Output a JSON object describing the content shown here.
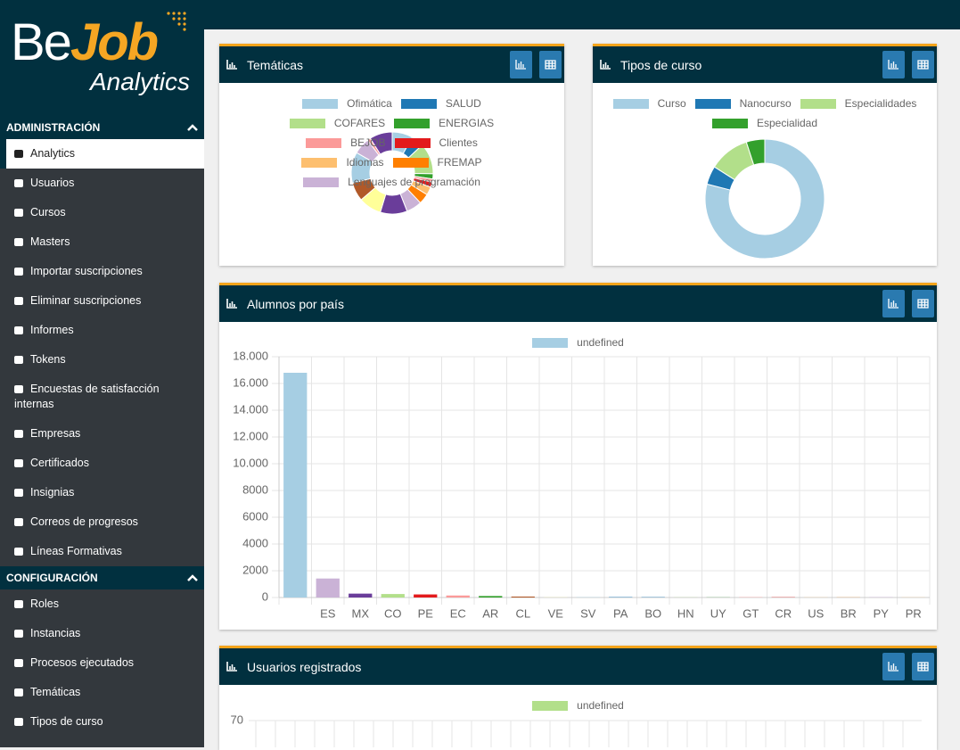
{
  "logo": {
    "brand_be": "Be",
    "brand_job": "Job",
    "subtitle": "Analytics"
  },
  "sidebar": {
    "sections": [
      {
        "title": "ADMINISTRACIÓN",
        "items": [
          {
            "label": "Analytics",
            "active": true
          },
          {
            "label": "Usuarios"
          },
          {
            "label": "Cursos"
          },
          {
            "label": "Masters"
          },
          {
            "label": "Importar suscripciones"
          },
          {
            "label": "Eliminar suscripciones"
          },
          {
            "label": "Informes"
          },
          {
            "label": "Tokens"
          },
          {
            "label": "Encuestas de satisfacción internas"
          },
          {
            "label": "Empresas"
          },
          {
            "label": "Certificados"
          },
          {
            "label": "Insignias"
          },
          {
            "label": "Correos de progresos"
          },
          {
            "label": "Líneas Formativas"
          }
        ]
      },
      {
        "title": "CONFIGURACIÓN",
        "items": [
          {
            "label": "Roles"
          },
          {
            "label": "Instancias"
          },
          {
            "label": "Procesos ejecutados"
          },
          {
            "label": "Temáticas"
          },
          {
            "label": "Tipos de curso"
          }
        ]
      }
    ]
  },
  "chart_data": [
    {
      "type": "pie",
      "title": "Temáticas",
      "categories": [
        "Ofimática",
        "SALUD",
        "COFARES",
        "ENERGIAS",
        "BEJOB",
        "Clientes",
        "Idiomas",
        "FREMAP",
        "Lenguajes de programación",
        null,
        null,
        null,
        null,
        null,
        null,
        null
      ],
      "values": [
        20,
        12,
        30,
        5,
        3,
        5,
        8,
        10,
        15,
        26,
        22,
        18,
        30,
        16,
        3,
        22
      ],
      "colors": [
        "#a6cee3",
        "#1f78b4",
        "#b2df8a",
        "#33a02c",
        "#fb9a99",
        "#e31a1c",
        "#fdbf6f",
        "#ff7f00",
        "#cab2d6",
        "#6a3d9a",
        "#ffff99",
        "#b15928",
        "#a6cee3",
        "#cab2d6",
        "#fb9a99",
        "#6a3d9a"
      ]
    },
    {
      "type": "pie",
      "title": "Tipos de curso",
      "categories": [
        "Curso",
        "Nanocurso",
        "Especialidades",
        "Especialidad"
      ],
      "values": [
        79,
        5,
        11,
        5
      ],
      "colors": [
        "#a6cee3",
        "#1f78b4",
        "#b2df8a",
        "#33a02c"
      ]
    },
    {
      "type": "bar",
      "title": "Alumnos por país",
      "categories": [
        null,
        "ES",
        "MX",
        "CO",
        "PE",
        "EC",
        "AR",
        "CL",
        "VE",
        "SV",
        "PA",
        "BO",
        "HN",
        "UY",
        "GT",
        "CR",
        "US",
        "BR",
        "PY",
        "PR"
      ],
      "series": [
        {
          "name": "undefined",
          "color": "#a6cee3",
          "values": [
            16800,
            1420,
            290,
            260,
            230,
            150,
            110,
            70,
            10,
            20,
            30,
            25,
            10,
            10,
            20,
            20,
            10,
            10,
            25,
            10
          ]
        }
      ],
      "colors": [
        "#a6cee3",
        "#cab2d6",
        "#6a3d9a",
        "#b2df8a",
        "#e31a1c",
        "#fb9a99",
        "#33a02c",
        "#b15928",
        "#ffff99",
        "#a6cee3",
        "#1f78b4",
        "#1f78b4",
        "#b2df8a",
        "#33a02c",
        "#fb9a99",
        "#e31a1c",
        "#fdbf6f",
        "#ff7f00",
        "#cab2d6",
        "#fdbf6f"
      ],
      "ylim": [
        0,
        18000
      ],
      "yticks": [
        0,
        2000,
        4000,
        6000,
        8000,
        {
          "value": 10000,
          "label": "10.000"
        },
        {
          "value": 12000,
          "label": "12.000"
        },
        {
          "value": 14000,
          "label": "14.000"
        },
        {
          "value": 16000,
          "label": "16.000"
        },
        {
          "value": 18000,
          "label": "18.000"
        }
      ],
      "grid": true
    },
    {
      "type": "line",
      "title": "Usuarios registrados",
      "series": [
        {
          "name": "undefined",
          "color": "#b2df8a",
          "values": []
        }
      ],
      "ylim": [
        0,
        70
      ],
      "yticks": [
        70
      ],
      "grid": true
    }
  ]
}
